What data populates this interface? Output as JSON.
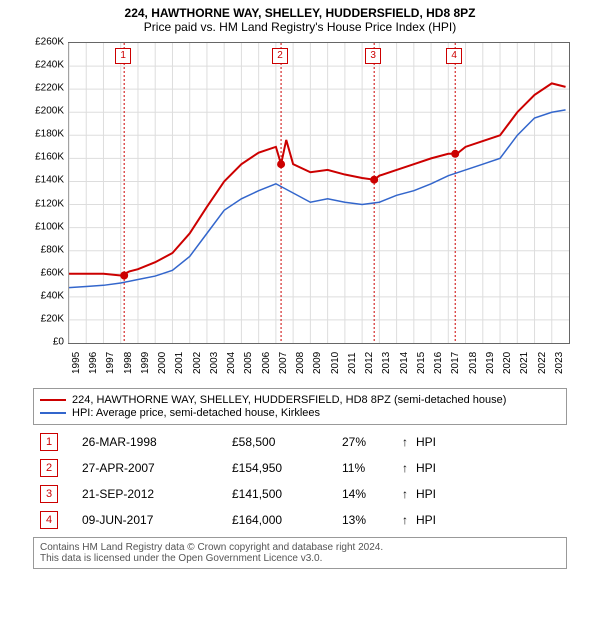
{
  "title_line1": "224, HAWTHORNE WAY, SHELLEY, HUDDERSFIELD, HD8 8PZ",
  "title_line2": "Price paid vs. HM Land Registry's House Price Index (HPI)",
  "chart": {
    "type": "line",
    "background_color": "#ffffff",
    "grid_color": "#dddddd",
    "border_color": "#666666",
    "xlim": [
      1995,
      2024
    ],
    "ylim": [
      0,
      260000
    ],
    "ytick_step": 20000,
    "ytick_prefix": "£",
    "ytick_suffix": "K",
    "ytick_divisor": 1000,
    "xticks": [
      1995,
      1996,
      1997,
      1998,
      1999,
      2000,
      2001,
      2002,
      2003,
      2004,
      2005,
      2006,
      2007,
      2008,
      2009,
      2010,
      2011,
      2012,
      2013,
      2014,
      2015,
      2016,
      2017,
      2018,
      2019,
      2020,
      2021,
      2022,
      2023
    ],
    "label_fontsize": 10,
    "series": [
      {
        "name": "224, HAWTHORNE WAY, SHELLEY, HUDDERSFIELD, HD8 8PZ (semi-detached house)",
        "color": "#cc0000",
        "line_width": 2,
        "data": [
          [
            1995,
            60000
          ],
          [
            1996,
            60000
          ],
          [
            1997,
            60000
          ],
          [
            1998,
            58500
          ],
          [
            1998.5,
            62000
          ],
          [
            1999,
            64000
          ],
          [
            2000,
            70000
          ],
          [
            2001,
            78000
          ],
          [
            2002,
            95000
          ],
          [
            2003,
            118000
          ],
          [
            2004,
            140000
          ],
          [
            2005,
            155000
          ],
          [
            2006,
            165000
          ],
          [
            2007,
            170000
          ],
          [
            2007.3,
            154950
          ],
          [
            2007.6,
            176000
          ],
          [
            2008,
            155000
          ],
          [
            2009,
            148000
          ],
          [
            2010,
            150000
          ],
          [
            2011,
            146000
          ],
          [
            2012,
            143000
          ],
          [
            2012.7,
            141500
          ],
          [
            2013,
            145000
          ],
          [
            2014,
            150000
          ],
          [
            2015,
            155000
          ],
          [
            2016,
            160000
          ],
          [
            2017,
            164000
          ],
          [
            2017.5,
            164000
          ],
          [
            2018,
            170000
          ],
          [
            2019,
            175000
          ],
          [
            2020,
            180000
          ],
          [
            2021,
            200000
          ],
          [
            2022,
            215000
          ],
          [
            2023,
            225000
          ],
          [
            2023.8,
            222000
          ]
        ]
      },
      {
        "name": "HPI: Average price, semi-detached house, Kirklees",
        "color": "#3366cc",
        "line_width": 1.5,
        "data": [
          [
            1995,
            48000
          ],
          [
            1996,
            49000
          ],
          [
            1997,
            50000
          ],
          [
            1998,
            52000
          ],
          [
            1999,
            55000
          ],
          [
            2000,
            58000
          ],
          [
            2001,
            63000
          ],
          [
            2002,
            75000
          ],
          [
            2003,
            95000
          ],
          [
            2004,
            115000
          ],
          [
            2005,
            125000
          ],
          [
            2006,
            132000
          ],
          [
            2007,
            138000
          ],
          [
            2008,
            130000
          ],
          [
            2009,
            122000
          ],
          [
            2010,
            125000
          ],
          [
            2011,
            122000
          ],
          [
            2012,
            120000
          ],
          [
            2013,
            122000
          ],
          [
            2014,
            128000
          ],
          [
            2015,
            132000
          ],
          [
            2016,
            138000
          ],
          [
            2017,
            145000
          ],
          [
            2018,
            150000
          ],
          [
            2019,
            155000
          ],
          [
            2020,
            160000
          ],
          [
            2021,
            180000
          ],
          [
            2022,
            195000
          ],
          [
            2023,
            200000
          ],
          [
            2023.8,
            202000
          ]
        ]
      }
    ],
    "sale_markers": [
      {
        "num": "1",
        "x": 1998.2,
        "y": 58500
      },
      {
        "num": "2",
        "x": 2007.3,
        "y": 154950
      },
      {
        "num": "3",
        "x": 2012.7,
        "y": 141500
      },
      {
        "num": "4",
        "x": 2017.4,
        "y": 164000
      }
    ],
    "marker_line_color": "#cc0000",
    "marker_dot_color": "#cc0000",
    "marker_box_top_y": 248000
  },
  "legend": [
    {
      "color": "#cc0000",
      "text": "224, HAWTHORNE WAY, SHELLEY, HUDDERSFIELD, HD8 8PZ (semi-detached house)"
    },
    {
      "color": "#3366cc",
      "text": "HPI: Average price, semi-detached house, Kirklees"
    }
  ],
  "sales": [
    {
      "num": "1",
      "date": "26-MAR-1998",
      "price": "£58,500",
      "pct": "27%",
      "arrow": "↑",
      "label": "HPI"
    },
    {
      "num": "2",
      "date": "27-APR-2007",
      "price": "£154,950",
      "pct": "11%",
      "arrow": "↑",
      "label": "HPI"
    },
    {
      "num": "3",
      "date": "21-SEP-2012",
      "price": "£141,500",
      "pct": "14%",
      "arrow": "↑",
      "label": "HPI"
    },
    {
      "num": "4",
      "date": "09-JUN-2017",
      "price": "£164,000",
      "pct": "13%",
      "arrow": "↑",
      "label": "HPI"
    }
  ],
  "footer_line1": "Contains HM Land Registry data © Crown copyright and database right 2024.",
  "footer_line2": "This data is licensed under the Open Government Licence v3.0."
}
